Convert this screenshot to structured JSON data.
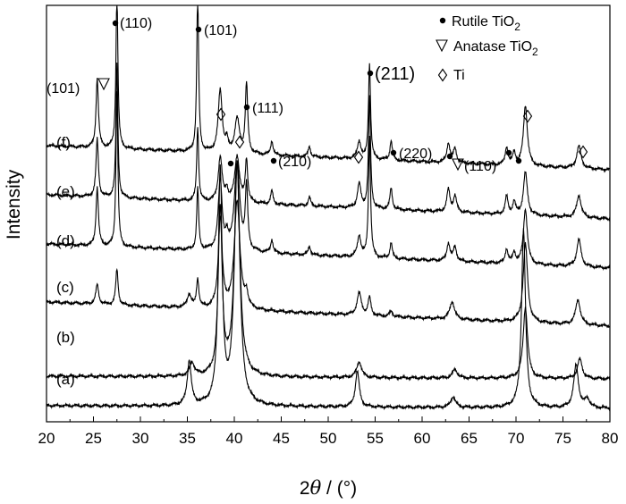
{
  "chart_data": {
    "type": "line",
    "xlabel_prefix": "2",
    "xlabel_symbol": "θ",
    "xlabel_suffix": " / (°)",
    "ylabel": "Intensity",
    "xlim": [
      20,
      80
    ],
    "x_ticks": [
      20,
      25,
      30,
      35,
      40,
      45,
      50,
      55,
      60,
      65,
      70,
      75,
      80
    ],
    "y_ticks": "none",
    "grid": false,
    "legend_placement": "top-right",
    "legend": [
      {
        "marker": "filled-circle",
        "text_main": "Rutile TiO",
        "text_sub": "2"
      },
      {
        "marker": "open-triangle-down",
        "text_main": "Anatase TiO",
        "text_sub": "2"
      },
      {
        "marker": "open-diamond",
        "text_main": "Ti",
        "text_sub": ""
      }
    ],
    "series": [
      {
        "name": "(a)",
        "baseline": 0,
        "slope": 0.05,
        "peaks": [
          {
            "x": 35.2,
            "h": 50,
            "w": 0.25
          },
          {
            "x": 38.5,
            "h": 260,
            "w": 0.25
          },
          {
            "x": 40.3,
            "h": 270,
            "w": 0.35
          },
          {
            "x": 53.1,
            "h": 40,
            "w": 0.25
          },
          {
            "x": 63.3,
            "h": 12,
            "w": 0.3
          },
          {
            "x": 70.8,
            "h": 200,
            "w": 0.25
          },
          {
            "x": 76.4,
            "h": 48,
            "w": 0.3
          },
          {
            "x": 77.6,
            "h": 10,
            "w": 0.3
          }
        ]
      },
      {
        "name": "(b)",
        "baseline": 1,
        "slope": 0.05,
        "peaks": [
          {
            "x": 35.5,
            "h": 15,
            "w": 0.3
          },
          {
            "x": 38.5,
            "h": 185,
            "w": 0.25
          },
          {
            "x": 40.3,
            "h": 235,
            "w": 0.35
          },
          {
            "x": 53.3,
            "h": 18,
            "w": 0.3
          },
          {
            "x": 63.5,
            "h": 10,
            "w": 0.3
          },
          {
            "x": 71.0,
            "h": 80,
            "w": 0.28
          },
          {
            "x": 76.8,
            "h": 22,
            "w": 0.3
          }
        ]
      },
      {
        "name": "(c)",
        "baseline": 2,
        "slope": 0.45,
        "peaks": [
          {
            "x": 25.4,
            "h": 22,
            "w": 0.18
          },
          {
            "x": 27.5,
            "h": 40,
            "w": 0.15
          },
          {
            "x": 35.2,
            "h": 15,
            "w": 0.25
          },
          {
            "x": 36.1,
            "h": 32,
            "w": 0.15
          },
          {
            "x": 38.5,
            "h": 100,
            "w": 0.25
          },
          {
            "x": 40.3,
            "h": 122,
            "w": 0.35
          },
          {
            "x": 41.3,
            "h": 15,
            "w": 0.18
          },
          {
            "x": 53.3,
            "h": 25,
            "w": 0.28
          },
          {
            "x": 54.4,
            "h": 20,
            "w": 0.18
          },
          {
            "x": 56.7,
            "h": 6,
            "w": 0.2
          },
          {
            "x": 63.2,
            "h": 20,
            "w": 0.3
          },
          {
            "x": 71.0,
            "h": 88,
            "w": 0.28
          },
          {
            "x": 76.6,
            "h": 28,
            "w": 0.3
          }
        ]
      },
      {
        "name": "(d)",
        "baseline": 3,
        "slope": 0.45,
        "peaks": [
          {
            "x": 25.4,
            "h": 66,
            "w": 0.15
          },
          {
            "x": 27.5,
            "h": 175,
            "w": 0.12
          },
          {
            "x": 36.1,
            "h": 70,
            "w": 0.12
          },
          {
            "x": 38.5,
            "h": 78,
            "w": 0.25
          },
          {
            "x": 39.2,
            "h": 12,
            "w": 0.15
          },
          {
            "x": 40.3,
            "h": 98,
            "w": 0.35
          },
          {
            "x": 41.3,
            "h": 70,
            "w": 0.15
          },
          {
            "x": 44.0,
            "h": 15,
            "w": 0.15
          },
          {
            "x": 48.0,
            "h": 10,
            "w": 0.15
          },
          {
            "x": 53.3,
            "h": 24,
            "w": 0.22
          },
          {
            "x": 54.4,
            "h": 135,
            "w": 0.13
          },
          {
            "x": 56.7,
            "h": 18,
            "w": 0.15
          },
          {
            "x": 62.8,
            "h": 20,
            "w": 0.2
          },
          {
            "x": 63.5,
            "h": 16,
            "w": 0.2
          },
          {
            "x": 69.0,
            "h": 16,
            "w": 0.18
          },
          {
            "x": 69.8,
            "h": 12,
            "w": 0.18
          },
          {
            "x": 71.0,
            "h": 62,
            "w": 0.25
          },
          {
            "x": 76.7,
            "h": 30,
            "w": 0.28
          }
        ]
      },
      {
        "name": "(e)",
        "baseline": 4,
        "slope": 0.45,
        "peaks": [
          {
            "x": 25.4,
            "h": 65,
            "w": 0.15
          },
          {
            "x": 27.5,
            "h": 150,
            "w": 0.12
          },
          {
            "x": 36.1,
            "h": 84,
            "w": 0.12
          },
          {
            "x": 38.5,
            "h": 50,
            "w": 0.25
          },
          {
            "x": 39.2,
            "h": 12,
            "w": 0.15
          },
          {
            "x": 40.3,
            "h": 52,
            "w": 0.3
          },
          {
            "x": 41.3,
            "h": 48,
            "w": 0.15
          },
          {
            "x": 44.0,
            "h": 15,
            "w": 0.15
          },
          {
            "x": 48.0,
            "h": 10,
            "w": 0.15
          },
          {
            "x": 53.3,
            "h": 27,
            "w": 0.22
          },
          {
            "x": 54.4,
            "h": 124,
            "w": 0.13
          },
          {
            "x": 56.7,
            "h": 24,
            "w": 0.15
          },
          {
            "x": 62.8,
            "h": 25,
            "w": 0.2
          },
          {
            "x": 63.5,
            "h": 18,
            "w": 0.2
          },
          {
            "x": 69.0,
            "h": 20,
            "w": 0.18
          },
          {
            "x": 69.8,
            "h": 14,
            "w": 0.18
          },
          {
            "x": 71.0,
            "h": 48,
            "w": 0.25
          },
          {
            "x": 76.7,
            "h": 25,
            "w": 0.28
          }
        ]
      },
      {
        "name": "(f)",
        "baseline": 5,
        "slope": 0.45,
        "peaks": [
          {
            "x": 25.4,
            "h": 78,
            "w": 0.15
          },
          {
            "x": 27.5,
            "h": 180,
            "w": 0.12
          },
          {
            "x": 36.1,
            "h": 178,
            "w": 0.12
          },
          {
            "x": 38.5,
            "h": 70,
            "w": 0.25
          },
          {
            "x": 39.2,
            "h": 12,
            "w": 0.15
          },
          {
            "x": 40.3,
            "h": 38,
            "w": 0.3
          },
          {
            "x": 41.3,
            "h": 78,
            "w": 0.15
          },
          {
            "x": 44.0,
            "h": 16,
            "w": 0.15
          },
          {
            "x": 48.0,
            "h": 12,
            "w": 0.15
          },
          {
            "x": 53.3,
            "h": 20,
            "w": 0.22
          },
          {
            "x": 54.4,
            "h": 108,
            "w": 0.13
          },
          {
            "x": 56.7,
            "h": 22,
            "w": 0.15
          },
          {
            "x": 62.8,
            "h": 22,
            "w": 0.2
          },
          {
            "x": 63.5,
            "h": 16,
            "w": 0.2
          },
          {
            "x": 69.0,
            "h": 20,
            "w": 0.18
          },
          {
            "x": 69.8,
            "h": 14,
            "w": 0.18
          },
          {
            "x": 71.0,
            "h": 68,
            "w": 0.25
          },
          {
            "x": 76.7,
            "h": 25,
            "w": 0.28
          }
        ]
      }
    ],
    "annotations": [
      {
        "text": "(110)",
        "x": 27.5,
        "marker": "filled-circle",
        "size": "normal"
      },
      {
        "text": "(101)",
        "x": 36.1,
        "marker": "filled-circle",
        "size": "normal"
      },
      {
        "text": "(101)",
        "x": 25.4,
        "marker": "open-triangle-down",
        "size": "normal"
      },
      {
        "text": "(111)",
        "x": 41.3,
        "marker": "filled-circle",
        "size": "normal"
      },
      {
        "text": "(210)",
        "x": 44.0,
        "marker": "filled-circle",
        "size": "normal"
      },
      {
        "text": "(211)",
        "x": 54.4,
        "marker": "filled-circle",
        "size": "big"
      },
      {
        "text": "(220)",
        "x": 56.7,
        "marker": "filled-circle",
        "size": "normal"
      },
      {
        "text": "(110)",
        "x": 63.5,
        "marker": "open-triangle-down",
        "size": "normal"
      },
      {
        "text": "",
        "x": 38.5,
        "marker": "open-diamond",
        "size": "normal"
      },
      {
        "text": "",
        "x": 40.3,
        "marker": "open-diamond",
        "size": "normal"
      },
      {
        "text": "",
        "x": 53.3,
        "marker": "open-diamond",
        "size": "normal"
      },
      {
        "text": "",
        "x": 71.0,
        "marker": "open-diamond",
        "size": "normal"
      },
      {
        "text": "",
        "x": 76.7,
        "marker": "open-diamond",
        "size": "normal"
      },
      {
        "text": "",
        "x": 39.2,
        "marker": "filled-circle",
        "size": "normal"
      },
      {
        "text": "",
        "x": 62.8,
        "marker": "filled-circle",
        "size": "normal"
      },
      {
        "text": "",
        "x": 69.0,
        "marker": "filled-circle",
        "size": "normal"
      },
      {
        "text": "",
        "x": 69.8,
        "marker": "filled-circle",
        "size": "normal"
      }
    ]
  }
}
